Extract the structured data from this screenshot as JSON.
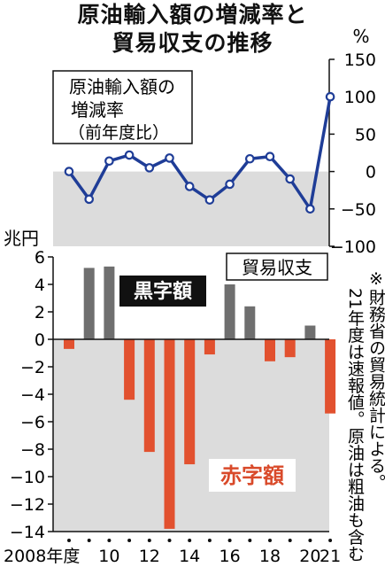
{
  "title_lines": [
    "原油輸入額の増減率と",
    "貿易収支の推移"
  ],
  "colors": {
    "line": "#1f3d97",
    "marker_fill": "#ffffff",
    "negative_zone": "#dcdcdc",
    "surplus_bar": "#6f6f6f",
    "deficit_bar": "#e2512f",
    "deficit_label": "#d94a2a",
    "surplus_label_bg": "#111111",
    "axis": "#111111"
  },
  "chart_data": [
    {
      "type": "line",
      "unit_label": "%",
      "title_lines": [
        "原油輸入額の",
        "増減率",
        "（前年度比）"
      ],
      "x": [
        2008,
        2009,
        2010,
        2011,
        2012,
        2013,
        2014,
        2015,
        2016,
        2017,
        2018,
        2019,
        2020,
        2021
      ],
      "series": [
        {
          "values": [
            0,
            -37,
            14,
            22,
            5,
            18,
            -20,
            -38,
            -17,
            17,
            20,
            -10,
            -50,
            100
          ]
        }
      ],
      "ylim": [
        -100,
        150
      ],
      "yticks": [
        150,
        100,
        50,
        0,
        -50,
        -100
      ],
      "ytick_labels": [
        "150",
        "100",
        "50",
        "0",
        "−50",
        "−100"
      ],
      "shaded_negative": true
    },
    {
      "type": "bar",
      "unit_label": "兆円",
      "title": "貿易収支",
      "x": [
        2008,
        2009,
        2010,
        2011,
        2012,
        2013,
        2014,
        2015,
        2016,
        2017,
        2018,
        2019,
        2020,
        2021
      ],
      "values": [
        -0.7,
        5.2,
        5.3,
        -4.4,
        -8.2,
        -13.8,
        -9.1,
        -1.1,
        4.0,
        2.4,
        -1.6,
        -1.3,
        1.0,
        -5.4
      ],
      "ylim": [
        -14,
        6
      ],
      "yticks": [
        6,
        4,
        2,
        0,
        -2,
        -4,
        -6,
        -8,
        -10,
        -12,
        -14
      ],
      "ytick_labels": [
        "6",
        "4",
        "2",
        "0",
        "−2",
        "−4",
        "−6",
        "−8",
        "−10",
        "−12",
        "−14"
      ],
      "surplus_label": "黒字額",
      "deficit_label": "赤字額",
      "note": "※財務省の貿易統計による。21年度は速報値。原油は粗油も含む"
    }
  ],
  "x_axis": {
    "tick_labels": [
      "2008年度",
      "10",
      "12",
      "14",
      "16",
      "18",
      "20",
      "21"
    ],
    "tick_years": [
      2008,
      2010,
      2012,
      2014,
      2016,
      2018,
      2020,
      2021
    ],
    "dot_years": [
      2009,
      2011,
      2013,
      2015,
      2017,
      2019
    ]
  }
}
